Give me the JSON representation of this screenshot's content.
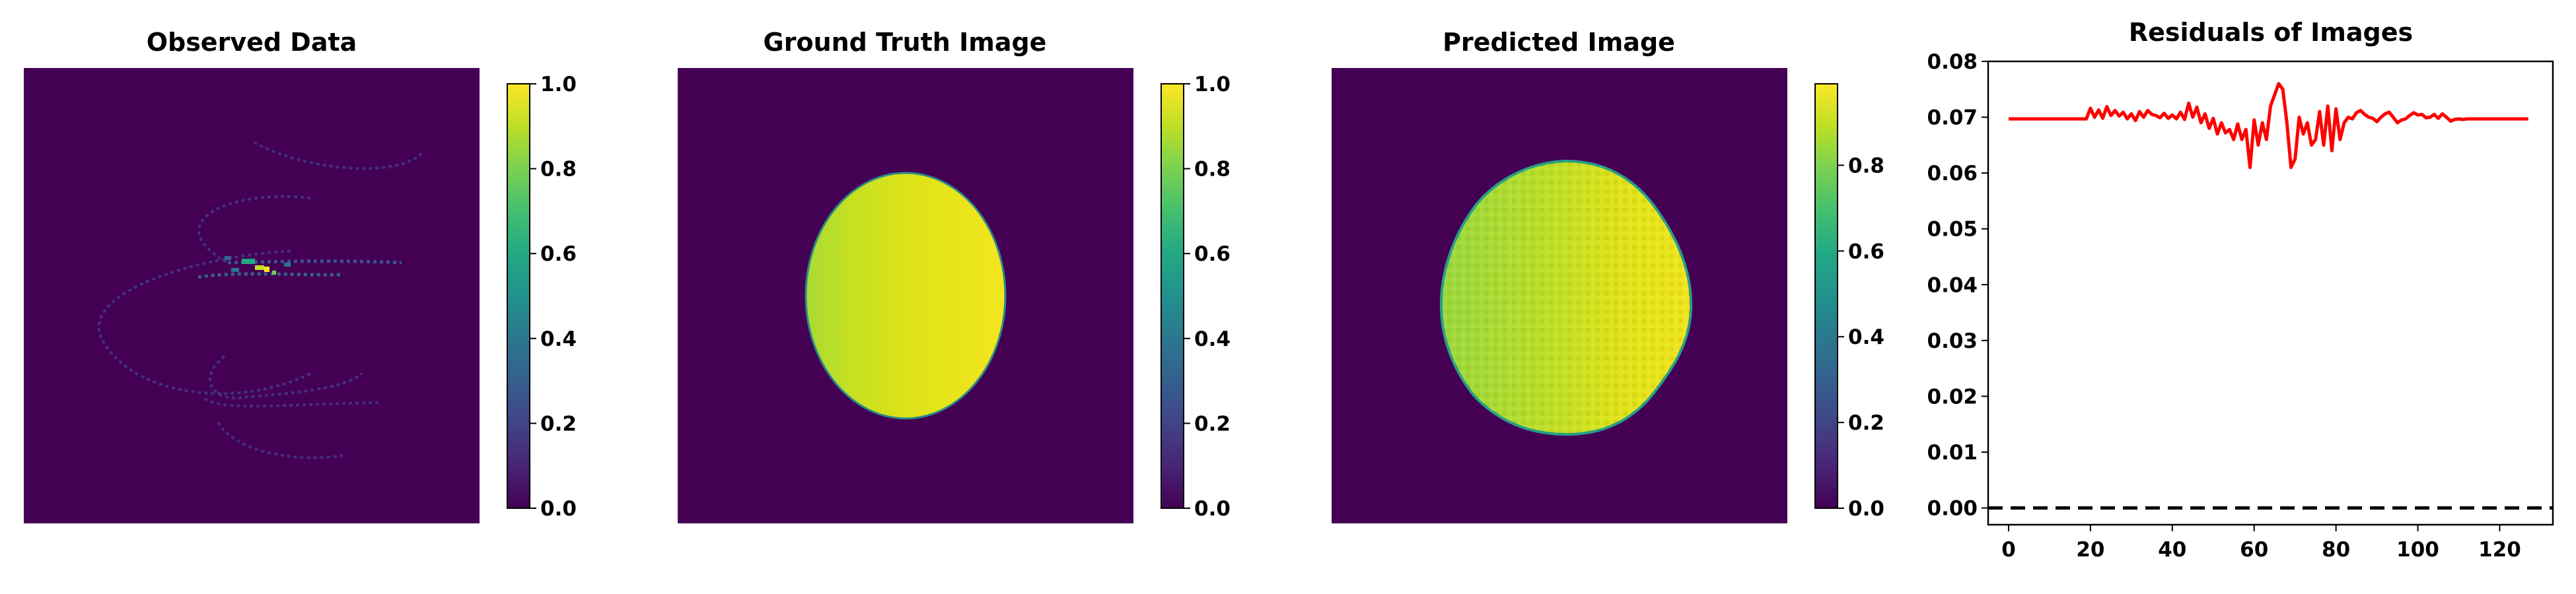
{
  "chart_data": [
    {
      "type": "heatmap",
      "title": "Observed Data",
      "description": "Sparse spiral-like scattered observations on a dark (0) background",
      "colormap": "viridis",
      "colorbar": {
        "vmin": 0.0,
        "vmax": 1.0,
        "ticks": [
          "0.0",
          "0.2",
          "0.4",
          "0.6",
          "0.8",
          "1.0"
        ]
      }
    },
    {
      "type": "heatmap",
      "title": "Ground Truth Image",
      "description": "Elliptical disk with values ~0.8 to 1.0, brighter toward the right",
      "colormap": "viridis",
      "colorbar": {
        "vmin": 0.0,
        "vmax": 1.0,
        "ticks": [
          "0.0",
          "0.2",
          "0.4",
          "0.6",
          "0.8",
          "1.0"
        ]
      }
    },
    {
      "type": "heatmap",
      "title": "Predicted Image",
      "description": "Noisy reconstruction of the elliptical disk",
      "colormap": "viridis",
      "colorbar": {
        "vmin": 0.0,
        "vmax": 0.99,
        "ticks": [
          "0.0",
          "0.2",
          "0.4",
          "0.6",
          "0.8"
        ]
      }
    },
    {
      "type": "line",
      "title": "Residuals of Images",
      "xlabel": "",
      "ylabel": "",
      "xlim": [
        -5,
        133
      ],
      "ylim": [
        -0.003,
        0.08
      ],
      "xticks": [
        "0",
        "20",
        "40",
        "60",
        "80",
        "100",
        "120"
      ],
      "yticks": [
        "0.00",
        "0.01",
        "0.02",
        "0.03",
        "0.04",
        "0.05",
        "0.06",
        "0.07",
        "0.08"
      ],
      "reference_line": {
        "y": 0.0,
        "style": "dashed",
        "color": "#000000"
      },
      "series": [
        {
          "color": "#ff0000",
          "x": [
            0,
            1,
            2,
            3,
            4,
            5,
            6,
            7,
            8,
            9,
            10,
            11,
            12,
            13,
            14,
            15,
            16,
            17,
            18,
            19,
            20,
            21,
            22,
            23,
            24,
            25,
            26,
            27,
            28,
            29,
            30,
            31,
            32,
            33,
            34,
            35,
            36,
            37,
            38,
            39,
            40,
            41,
            42,
            43,
            44,
            45,
            46,
            47,
            48,
            49,
            50,
            51,
            52,
            53,
            54,
            55,
            56,
            57,
            58,
            59,
            60,
            61,
            62,
            63,
            64,
            65,
            66,
            67,
            68,
            69,
            70,
            71,
            72,
            73,
            74,
            75,
            76,
            77,
            78,
            79,
            80,
            81,
            82,
            83,
            84,
            85,
            86,
            87,
            88,
            89,
            90,
            91,
            92,
            93,
            94,
            95,
            96,
            97,
            98,
            99,
            100,
            101,
            102,
            103,
            104,
            105,
            106,
            107,
            108,
            109,
            110,
            111,
            112,
            113,
            114,
            115,
            116,
            117,
            118,
            119,
            120,
            121,
            122,
            123,
            124,
            125,
            126,
            127
          ],
          "y": [
            0.0697,
            0.0697,
            0.0697,
            0.0697,
            0.0697,
            0.0697,
            0.0697,
            0.0697,
            0.0697,
            0.0697,
            0.0697,
            0.0697,
            0.0697,
            0.0697,
            0.0697,
            0.0697,
            0.0697,
            0.0697,
            0.0697,
            0.0697,
            0.0716,
            0.07,
            0.0713,
            0.0698,
            0.0719,
            0.0703,
            0.0712,
            0.0702,
            0.0709,
            0.0697,
            0.0706,
            0.0694,
            0.071,
            0.07,
            0.0712,
            0.0705,
            0.0703,
            0.0699,
            0.0707,
            0.0698,
            0.0704,
            0.0697,
            0.0709,
            0.0696,
            0.0725,
            0.07,
            0.0718,
            0.069,
            0.0706,
            0.068,
            0.0698,
            0.067,
            0.069,
            0.0672,
            0.0678,
            0.066,
            0.0688,
            0.066,
            0.0678,
            0.061,
            0.0695,
            0.065,
            0.069,
            0.066,
            0.072,
            0.074,
            0.076,
            0.075,
            0.069,
            0.061,
            0.0625,
            0.07,
            0.067,
            0.069,
            0.065,
            0.066,
            0.071,
            0.065,
            0.072,
            0.064,
            0.0715,
            0.066,
            0.069,
            0.07,
            0.0697,
            0.0708,
            0.0712,
            0.0705,
            0.07,
            0.0698,
            0.0692,
            0.07,
            0.0706,
            0.0709,
            0.07,
            0.069,
            0.0695,
            0.0697,
            0.0703,
            0.0708,
            0.0704,
            0.0705,
            0.0699,
            0.07,
            0.0705,
            0.0698,
            0.0706,
            0.07,
            0.0693,
            0.0696,
            0.0697,
            0.0696,
            0.0697,
            0.0697,
            0.0697,
            0.0697,
            0.0697,
            0.0697,
            0.0697,
            0.0697,
            0.0697,
            0.0697,
            0.0697,
            0.0697,
            0.0697,
            0.0697,
            0.0697,
            0.0697
          ]
        }
      ]
    }
  ]
}
